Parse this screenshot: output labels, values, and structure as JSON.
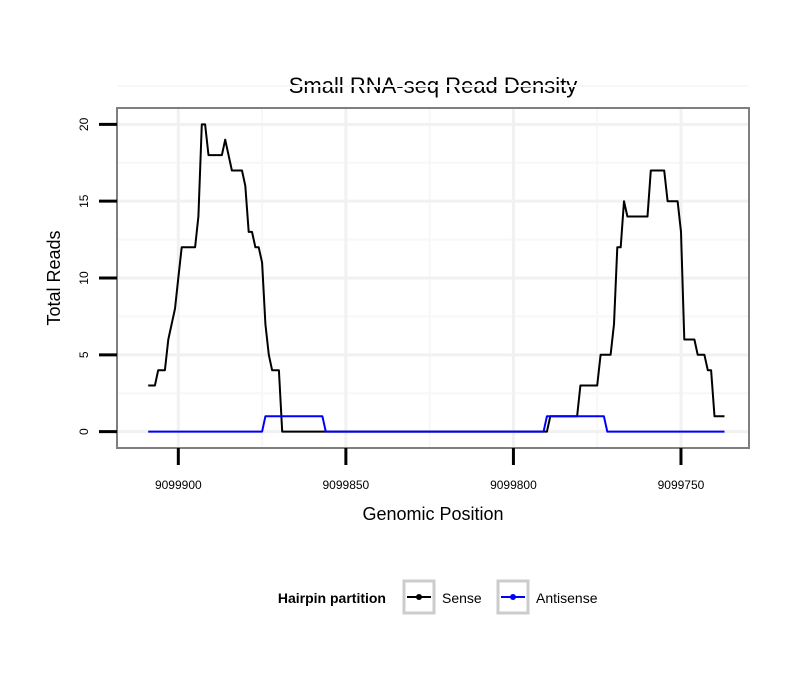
{
  "chart_data": {
    "type": "line",
    "title": "Small RNA-seq Read Density",
    "xlabel": "Genomic Position",
    "ylabel": "Total Reads",
    "xlim": [
      9099918,
      9099730
    ],
    "x_reversed": true,
    "ylim": [
      -1,
      21
    ],
    "x_ticks": [
      9099900,
      9099850,
      9099800,
      9099750
    ],
    "x_tick_labels": [
      "9099900",
      "9099850",
      "9099800",
      "9099750"
    ],
    "y_ticks": [
      0,
      5,
      10,
      15,
      20
    ],
    "y_tick_labels": [
      "0",
      "5",
      "10",
      "15",
      "20"
    ],
    "grid": true,
    "legend": {
      "title": "Hairpin partition",
      "placement": "bottom",
      "entries": [
        {
          "label": "Sense",
          "color": "#000000"
        },
        {
          "label": "Antisense",
          "color": "#0000ff"
        }
      ]
    },
    "series": [
      {
        "name": "Sense",
        "color": "#000000",
        "points": [
          [
            9099909,
            3
          ],
          [
            9099907,
            3
          ],
          [
            9099906,
            4
          ],
          [
            9099904,
            4
          ],
          [
            9099903,
            6
          ],
          [
            9099901,
            8
          ],
          [
            9099900,
            10
          ],
          [
            9099899,
            12
          ],
          [
            9099897,
            12
          ],
          [
            9099895,
            12
          ],
          [
            9099894,
            14
          ],
          [
            9099893,
            20
          ],
          [
            9099892,
            20
          ],
          [
            9099891,
            18
          ],
          [
            9099887,
            18
          ],
          [
            9099886,
            19
          ],
          [
            9099884,
            17
          ],
          [
            9099881,
            17
          ],
          [
            9099880,
            16
          ],
          [
            9099879,
            13
          ],
          [
            9099878,
            13
          ],
          [
            9099877,
            12
          ],
          [
            9099876,
            12
          ],
          [
            9099875,
            11
          ],
          [
            9099874,
            7
          ],
          [
            9099873,
            5
          ],
          [
            9099872,
            4
          ],
          [
            9099870,
            4
          ],
          [
            9099869,
            0
          ],
          [
            9099868,
            0
          ],
          [
            9099790,
            0
          ],
          [
            9099789,
            1
          ],
          [
            9099788,
            1
          ],
          [
            9099781,
            1
          ],
          [
            9099780,
            3
          ],
          [
            9099775,
            3
          ],
          [
            9099774,
            5
          ],
          [
            9099771,
            5
          ],
          [
            9099770,
            7
          ],
          [
            9099769,
            12
          ],
          [
            9099768,
            12
          ],
          [
            9099767,
            15
          ],
          [
            9099766,
            14
          ],
          [
            9099760,
            14
          ],
          [
            9099759,
            17
          ],
          [
            9099755,
            17
          ],
          [
            9099754,
            15
          ],
          [
            9099751,
            15
          ],
          [
            9099750,
            13
          ],
          [
            9099749,
            6
          ],
          [
            9099746,
            6
          ],
          [
            9099745,
            5
          ],
          [
            9099743,
            5
          ],
          [
            9099742,
            4
          ],
          [
            9099741,
            4
          ],
          [
            9099740,
            1
          ],
          [
            9099737,
            1
          ]
        ]
      },
      {
        "name": "Antisense",
        "color": "#0000ff",
        "points": [
          [
            9099909,
            0
          ],
          [
            9099875,
            0
          ],
          [
            9099874,
            1
          ],
          [
            9099857,
            1
          ],
          [
            9099856,
            0
          ],
          [
            9099791,
            0
          ],
          [
            9099790,
            1
          ],
          [
            9099773,
            1
          ],
          [
            9099772,
            0
          ],
          [
            9099737,
            0
          ]
        ]
      }
    ]
  }
}
